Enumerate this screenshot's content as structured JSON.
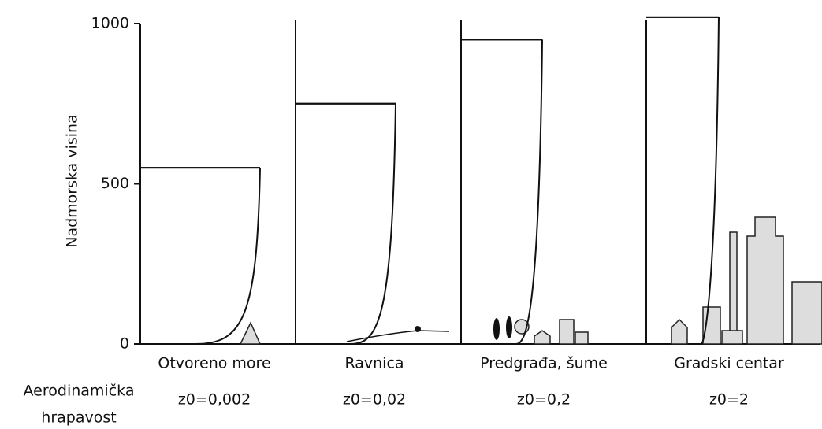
{
  "y_axis": {
    "label": "Nadmorska visina",
    "ticks": [
      0,
      500,
      1000
    ]
  },
  "row_label": "Aerodinamička hrapavost",
  "panels": [
    {
      "label": "Otvoreno more",
      "roughness": "z0=0,002",
      "height": 550
    },
    {
      "label": "Ravnica",
      "roughness": "z0=0,02",
      "height": 750
    },
    {
      "label": "Predgrađa, šume",
      "roughness": "z0=0,2",
      "height": 950
    },
    {
      "label": "Gradski centar",
      "roughness": "z0=2",
      "height": 1020
    }
  ]
}
